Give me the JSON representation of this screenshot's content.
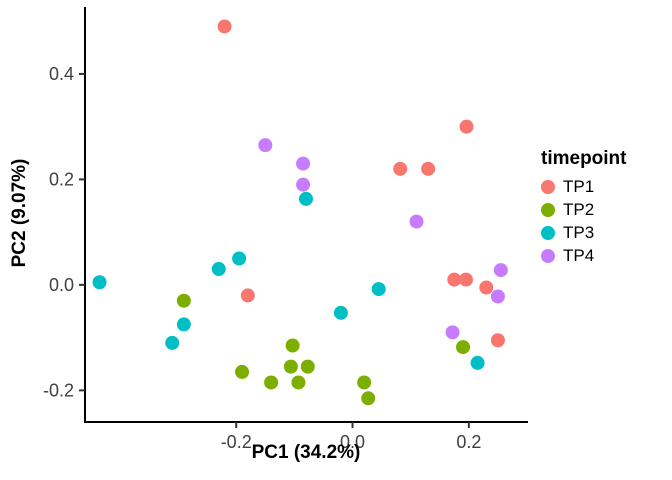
{
  "chart_data": {
    "type": "scatter",
    "title": "",
    "xlabel": "PC1 (34.2%)",
    "ylabel": "PC2 (9.07%)",
    "xlim": [
      -0.46,
      0.3
    ],
    "ylim": [
      -0.26,
      0.525
    ],
    "x_ticks": [
      {
        "v": -0.2,
        "label": "-0.2"
      },
      {
        "v": 0.0,
        "label": "0.0"
      },
      {
        "v": 0.2,
        "label": "0.2"
      }
    ],
    "y_ticks": [
      {
        "v": -0.2,
        "label": "-0.2"
      },
      {
        "v": 0.0,
        "label": "0.0"
      },
      {
        "v": 0.2,
        "label": "0.2"
      },
      {
        "v": 0.4,
        "label": "0.4"
      }
    ],
    "grid": false,
    "legend": {
      "title": "timepoint",
      "position": "right"
    },
    "point_radius": 7,
    "series": [
      {
        "name": "TP1",
        "color": "#F8766D",
        "points": [
          [
            -0.22,
            0.49
          ],
          [
            0.196,
            0.3
          ],
          [
            0.082,
            0.22
          ],
          [
            0.13,
            0.22
          ],
          [
            -0.18,
            -0.02
          ],
          [
            0.175,
            0.01
          ],
          [
            0.195,
            0.01
          ],
          [
            0.23,
            -0.005
          ],
          [
            0.25,
            -0.105
          ]
        ]
      },
      {
        "name": "TP2",
        "color": "#7CAE00",
        "points": [
          [
            -0.29,
            -0.03
          ],
          [
            -0.19,
            -0.165
          ],
          [
            -0.14,
            -0.185
          ],
          [
            -0.103,
            -0.115
          ],
          [
            -0.106,
            -0.155
          ],
          [
            -0.093,
            -0.185
          ],
          [
            -0.077,
            -0.155
          ],
          [
            0.02,
            -0.185
          ],
          [
            0.027,
            -0.215
          ],
          [
            0.19,
            -0.118
          ]
        ]
      },
      {
        "name": "TP3",
        "color": "#00BFC4",
        "points": [
          [
            -0.435,
            0.005
          ],
          [
            -0.31,
            -0.11
          ],
          [
            -0.29,
            -0.075
          ],
          [
            -0.23,
            0.03
          ],
          [
            -0.195,
            0.05
          ],
          [
            -0.08,
            0.163
          ],
          [
            -0.02,
            -0.053
          ],
          [
            0.045,
            -0.008
          ],
          [
            0.215,
            -0.148
          ]
        ]
      },
      {
        "name": "TP4",
        "color": "#C77CFF",
        "points": [
          [
            -0.15,
            0.265
          ],
          [
            -0.085,
            0.23
          ],
          [
            -0.085,
            0.19
          ],
          [
            0.11,
            0.12
          ],
          [
            0.172,
            -0.09
          ],
          [
            0.255,
            0.028
          ],
          [
            0.25,
            -0.022
          ]
        ]
      }
    ],
    "colors": {
      "axis": "#000000",
      "tick": "#333333",
      "tick_label": "#404040",
      "background": "#FFFFFF"
    }
  }
}
